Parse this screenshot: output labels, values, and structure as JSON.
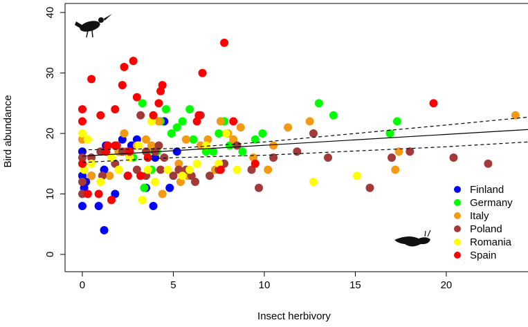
{
  "chart_data": {
    "type": "scatter",
    "x_label": "Insect herbivory",
    "y_label": "Bird abundance",
    "xlim": [
      -0.95,
      24.49
    ],
    "ylim": [
      -2.86,
      41.5
    ],
    "xticks": [
      0,
      5,
      10,
      15,
      20
    ],
    "yticks": [
      0,
      10,
      20,
      30,
      40
    ],
    "grid": false,
    "legend": "bottom-right",
    "series": [
      {
        "name": "Finland",
        "color": "#0000ff",
        "x": [
          0,
          0,
          0,
          0.1,
          0.2,
          0.5,
          0.9,
          1.2,
          1.2,
          1.3,
          1.8,
          2,
          2.5,
          2.2,
          3,
          3.5,
          3.9,
          4.5,
          4.8,
          5.2,
          2.7,
          4
        ],
        "values": [
          8,
          13,
          17,
          11,
          12,
          13,
          8,
          4,
          14,
          18,
          10,
          17,
          13,
          19,
          19,
          11,
          8,
          22,
          11,
          17,
          18,
          16
        ]
      },
      {
        "name": "Germany",
        "color": "#00ff00",
        "x": [
          3.3,
          3.4,
          3.8,
          4.1,
          4.6,
          4.3,
          5.2,
          5.5,
          5.9,
          6.1,
          6.8,
          7.2,
          7.5,
          7.8,
          8.1,
          8.8,
          9.5,
          9.9,
          13,
          13.8,
          16.9,
          17.3,
          2.8,
          3.6,
          4.9
        ],
        "values": [
          25,
          11,
          14,
          17,
          24,
          22,
          21,
          22,
          24,
          19,
          17,
          17,
          20,
          22,
          18,
          17,
          19,
          20,
          25,
          23,
          20,
          22,
          16,
          17,
          20
        ]
      },
      {
        "name": "Italy",
        "color": "#f39a13",
        "x": [
          0,
          0.5,
          1.5,
          2.3,
          2.4,
          3,
          3.2,
          3.5,
          3.8,
          4.2,
          4.4,
          5.3,
          5.4,
          5.7,
          6.5,
          6.9,
          7.3,
          7.6,
          8,
          8.3,
          8.7,
          9.4,
          10.2,
          10.5,
          11.3,
          12.5,
          17.2,
          17.4,
          23.8,
          2,
          5.8
        ],
        "values": [
          19,
          13,
          13,
          20,
          17,
          18,
          13,
          19,
          18,
          22,
          10,
          15,
          12,
          19,
          18,
          19,
          14,
          22,
          20,
          19,
          21,
          16,
          14,
          18,
          21,
          22,
          14,
          17,
          23,
          17,
          13
        ]
      },
      {
        "name": "Poland",
        "color": "#a33a3a",
        "x": [
          0,
          0,
          0,
          0.5,
          1,
          1.1,
          1.8,
          2.2,
          2.5,
          3,
          3.2,
          3.5,
          4,
          4.2,
          4.3,
          4.5,
          5,
          5.3,
          5.7,
          6,
          6.2,
          6.5,
          7,
          7.5,
          7.8,
          8.5,
          9.3,
          9.7,
          10.5,
          11.8,
          12.7,
          13.5,
          15.8,
          17,
          18,
          20.4,
          22.3,
          1.9,
          3.5
        ],
        "values": [
          10,
          12,
          16,
          16,
          17,
          13,
          15,
          17,
          17,
          14,
          23,
          13,
          17,
          18,
          14,
          16,
          13,
          14,
          14,
          13,
          12,
          23,
          13,
          14,
          15,
          18,
          14,
          11,
          16,
          17,
          20,
          16,
          11,
          16,
          17,
          16,
          15,
          18,
          17
        ]
      },
      {
        "name": "Romania",
        "color": "#ffff00",
        "x": [
          0,
          0.1,
          0.3,
          0.5,
          1,
          1.6,
          2,
          2.6,
          3.1,
          3.3,
          3.6,
          3.8,
          4,
          4.7,
          5.5,
          5.9,
          6.3,
          6.8,
          7.5,
          8.5,
          12.7,
          15.1,
          7.9
        ],
        "values": [
          20,
          14,
          19,
          15,
          12,
          16,
          14,
          16,
          18,
          9,
          14,
          22,
          12,
          14,
          13,
          14,
          15,
          18,
          15,
          14,
          12,
          13,
          20
        ]
      },
      {
        "name": "Spain",
        "color": "#ff0000",
        "x": [
          0,
          0,
          0,
          0.3,
          0.5,
          0.9,
          1,
          1.3,
          1.6,
          1.8,
          1.8,
          2.2,
          2.3,
          2.8,
          2.5,
          3,
          3.2,
          3.6,
          3.9,
          4.2,
          4.3,
          4.4,
          6.3,
          6.4,
          6.6,
          7.6,
          7.8,
          8.3,
          9.5,
          19.3,
          1.4,
          2.6
        ],
        "values": [
          22,
          24,
          15,
          10,
          29,
          10,
          23,
          17,
          9,
          18,
          24,
          28,
          31,
          32,
          13,
          26,
          13,
          16,
          23,
          25,
          27,
          28,
          22,
          23,
          30,
          14,
          35,
          22,
          15,
          25,
          18,
          17
        ]
      }
    ],
    "lines": [
      {
        "style": "solid",
        "x": [
          0,
          24.49
        ],
        "values": [
          16.25,
          20.65
        ]
      },
      {
        "style": "dashed",
        "x": [
          0,
          5,
          10,
          15,
          20,
          24.49
        ],
        "values": [
          17.3,
          17.5,
          18.6,
          20,
          21.4,
          22.7
        ]
      },
      {
        "style": "dashed",
        "x": [
          0,
          5,
          10,
          15,
          20,
          24.49
        ],
        "values": [
          15.2,
          16,
          16.4,
          17.1,
          17.8,
          18.6
        ]
      }
    ]
  }
}
